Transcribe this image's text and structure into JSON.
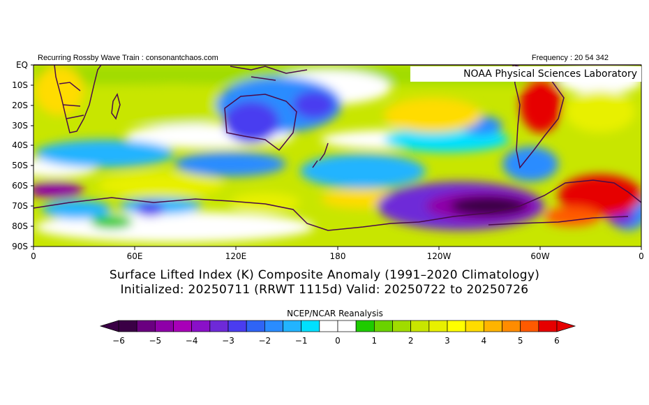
{
  "header": {
    "left_credit": "Recurring Rossby Wave Train : consonantchaos.com",
    "right_credit": "Frequency : 20 54 342",
    "lab": "NOAA Physical Sciences Laboratory"
  },
  "map": {
    "lat_labels": [
      "EQ",
      "10S",
      "20S",
      "30S",
      "40S",
      "50S",
      "60S",
      "70S",
      "80S",
      "90S"
    ],
    "lon_labels": [
      "0",
      "60E",
      "120E",
      "180",
      "120W",
      "60W",
      "0"
    ]
  },
  "titles": {
    "line1": "Surface Lifted Index (K) Composite Anomaly (1991–2020 Climatology)",
    "line2": "Initialized: 20250711 (RRWT 1115d) Valid: 20250722 to 20250726"
  },
  "colorbar": {
    "title": "NCEP/NCAR Reanalysis",
    "ticks": [
      "−6",
      "−5",
      "−4",
      "−3",
      "−2",
      "−1",
      "0",
      "1",
      "2",
      "3",
      "4",
      "5",
      "6"
    ],
    "colors": [
      "#3a0045",
      "#6a0080",
      "#8e00a8",
      "#a800b8",
      "#8a10c8",
      "#6e2ad8",
      "#4a3cf0",
      "#2f64f5",
      "#2a8cff",
      "#22b4ff",
      "#00e0ff",
      "#ffffff",
      "#ffffff",
      "#1ecb00",
      "#6ad200",
      "#a0dc00",
      "#c8e600",
      "#e8f000",
      "#ffff00",
      "#ffdc00",
      "#ffb400",
      "#ff8c00",
      "#ff5a00",
      "#e60000"
    ],
    "low_color": "#3a0045",
    "high_color": "#e60000"
  }
}
